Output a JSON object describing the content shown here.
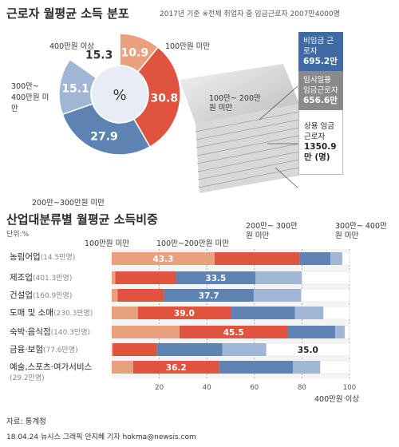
{
  "pie": {
    "title": "근로자 월평균 소득 분포",
    "subtitle": "2017년 기준 ※전체 취업자 중 임금근로자 2007만4000명",
    "center_symbol": "%",
    "labels": {
      "s1": "100만원 미만",
      "s2": "100만~ 200만원 미만",
      "s3": "200만~300만원 미만",
      "s4": "300만~ 400만원 미만",
      "s5": "400만원 이상"
    }
  },
  "legend": {
    "irregular": {
      "label": "비임금 근로자",
      "value": "695.2만"
    },
    "temporary": {
      "label": "임시일용 임금근로자",
      "value": "656.6만"
    },
    "regular": {
      "label": "상용 임금근로자",
      "value": "1350.9만 (명)"
    }
  },
  "bar_section": {
    "title": "산업대분류별 월평균 소득비중",
    "unit": "단위:%",
    "headers": {
      "h1": "100만원 미만",
      "h2": "100만~200만원 미만",
      "h3": "200만~ 300만원 미만",
      "h4": "300만~ 400만원 미만",
      "h5": "400만원 이상"
    },
    "ticks": [
      "20",
      "40",
      "60",
      "80",
      "100"
    ]
  },
  "footer": {
    "source": "자료: 통계청",
    "credit": "18.04.24 뉴시스 그래픽 안지혜 기자 hokma@newsis.com"
  },
  "colors": {
    "lt100": "#e9a07f",
    "100_200": "#e0533f",
    "200_300": "#5d83b3",
    "300_400": "#9fb6d5",
    "over400": "#ffffff"
  },
  "chart_data": [
    {
      "type": "pie",
      "title": "근로자 월평균 소득 분포",
      "subtitle": "2017년 기준 ※전체 취업자 중 임금근로자 2007만4000명",
      "categories": [
        "100만원 미만",
        "100만~200만원 미만",
        "200만~300만원 미만",
        "300만~400만원 미만",
        "400만원 이상"
      ],
      "values": [
        10.9,
        30.8,
        27.9,
        15.1,
        15.3
      ]
    },
    {
      "type": "bar",
      "orientation": "horizontal-stacked",
      "title": "산업대분류별 월평균 소득비중",
      "xlim": [
        0,
        100
      ],
      "categories": [
        {
          "name": "농림어업",
          "count": "(14.5만명)"
        },
        {
          "name": "제조업",
          "count": "(401.3만명)"
        },
        {
          "name": "건설업",
          "count": "(160.9만명)"
        },
        {
          "name": "도매 및 소매",
          "count": "(230.3만명)"
        },
        {
          "name": "숙박·음식점",
          "count": "(140.3만명)"
        },
        {
          "name": "금융·보험",
          "count": "(77.6만명)"
        },
        {
          "name": "예술,스포츠·여가서비스",
          "count": "(29.2만명)"
        }
      ],
      "series": [
        {
          "name": "100만원 미만",
          "values": [
            43.3,
            1.5,
            2.5,
            11.0,
            28.5,
            0.5,
            9.0
          ]
        },
        {
          "name": "100만~200만원 미만",
          "values": [
            35.7,
            25.5,
            19.5,
            39.0,
            45.5,
            18.5,
            36.2
          ]
        },
        {
          "name": "200만~300만원 미만",
          "values": [
            13.0,
            33.5,
            37.7,
            27.0,
            20.0,
            27.5,
            31.0
          ]
        },
        {
          "name": "300만~400만원 미만",
          "values": [
            5.0,
            19.5,
            20.0,
            12.0,
            4.0,
            18.5,
            11.5
          ]
        },
        {
          "name": "400만원 이상",
          "values": [
            3.0,
            20.0,
            20.3,
            11.0,
            2.0,
            35.0,
            12.3
          ]
        }
      ],
      "labeled_values": [
        {
          "row": 0,
          "series": 0,
          "text": "43.3"
        },
        {
          "row": 1,
          "series": 2,
          "text": "33.5"
        },
        {
          "row": 2,
          "series": 2,
          "text": "37.7"
        },
        {
          "row": 3,
          "series": 1,
          "text": "39.0"
        },
        {
          "row": 4,
          "series": 1,
          "text": "45.5"
        },
        {
          "row": 5,
          "series": 4,
          "text": "35.0"
        },
        {
          "row": 6,
          "series": 1,
          "text": "36.2"
        }
      ]
    }
  ]
}
